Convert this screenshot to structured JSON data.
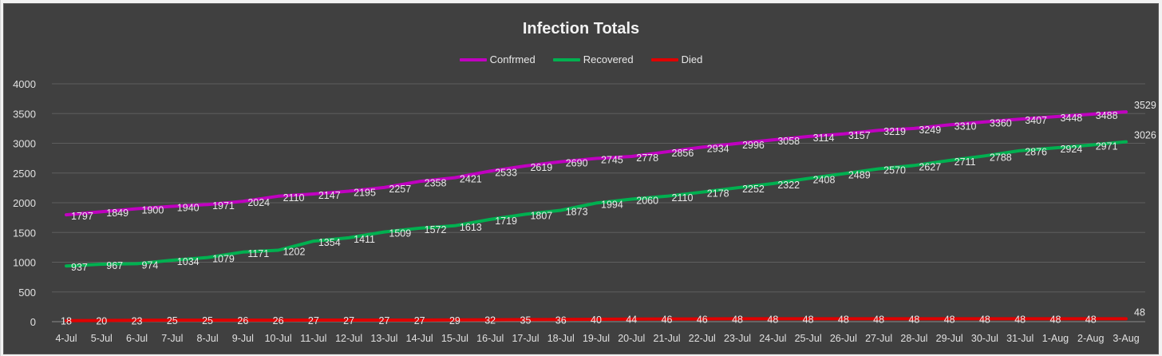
{
  "chart_data": {
    "type": "line",
    "title": "Infection Totals",
    "xlabel": "",
    "ylabel": "",
    "ylim": [
      0,
      4000
    ],
    "yticks": [
      0,
      500,
      1000,
      1500,
      2000,
      2500,
      3000,
      3500,
      4000
    ],
    "grid": true,
    "legend_position": "top",
    "categories": [
      "4-Jul",
      "5-Jul",
      "6-Jul",
      "7-Jul",
      "8-Jul",
      "9-Jul",
      "10-Jul",
      "11-Jul",
      "12-Jul",
      "13-Jul",
      "14-Jul",
      "15-Jul",
      "16-Jul",
      "17-Jul",
      "18-Jul",
      "19-Jul",
      "20-Jul",
      "21-Jul",
      "22-Jul",
      "23-Jul",
      "24-Jul",
      "25-Jul",
      "26-Jul",
      "27-Jul",
      "28-Jul",
      "29-Jul",
      "30-Jul",
      "31-Jul",
      "1-Aug",
      "2-Aug",
      "3-Aug"
    ],
    "series": [
      {
        "name": "Confrmed",
        "color": "#c000c0",
        "values": [
          1797,
          1849,
          1900,
          1940,
          1971,
          2024,
          2110,
          2147,
          2195,
          2257,
          2358,
          2421,
          2533,
          2619,
          2690,
          2745,
          2778,
          2856,
          2934,
          2996,
          3058,
          3114,
          3157,
          3219,
          3249,
          3310,
          3360,
          3407,
          3448,
          3488,
          3529
        ]
      },
      {
        "name": "Recovered",
        "color": "#00b050",
        "values": [
          937,
          967,
          974,
          1034,
          1079,
          1171,
          1202,
          1354,
          1411,
          1509,
          1572,
          1613,
          1719,
          1807,
          1873,
          1994,
          2060,
          2110,
          2178,
          2252,
          2322,
          2408,
          2489,
          2570,
          2627,
          2711,
          2788,
          2876,
          2924,
          2971,
          3026
        ]
      },
      {
        "name": "Died",
        "color": "#e00000",
        "values": [
          18,
          20,
          23,
          25,
          25,
          26,
          26,
          27,
          27,
          27,
          27,
          29,
          32,
          35,
          36,
          40,
          44,
          46,
          46,
          48,
          48,
          48,
          48,
          48,
          48,
          48,
          48,
          48,
          48,
          48,
          48
        ]
      }
    ]
  }
}
